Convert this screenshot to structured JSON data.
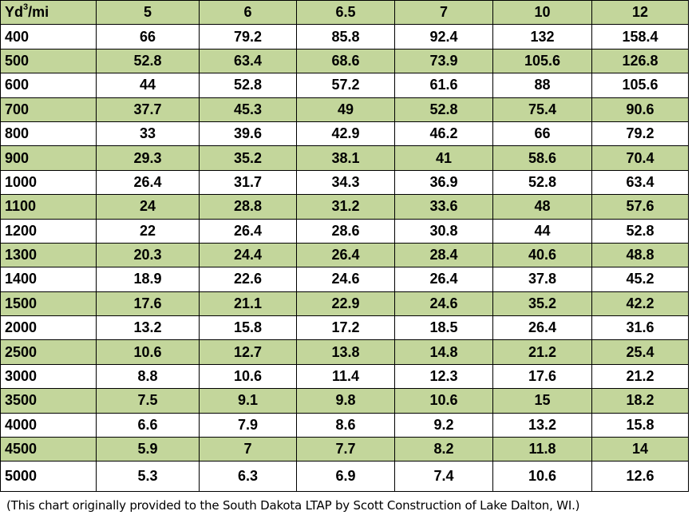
{
  "table": {
    "header": {
      "unit_label": "Yd",
      "unit_superscript": "3",
      "unit_suffix": "/mi",
      "columns": [
        "5",
        "6",
        "6.5",
        "7",
        "10",
        "12"
      ]
    },
    "rows": [
      {
        "label": "400",
        "values": [
          "66",
          "79.2",
          "85.8",
          "92.4",
          "132",
          "158.4"
        ]
      },
      {
        "label": "500",
        "values": [
          "52.8",
          "63.4",
          "68.6",
          "73.9",
          "105.6",
          "126.8"
        ]
      },
      {
        "label": "600",
        "values": [
          "44",
          "52.8",
          "57.2",
          "61.6",
          "88",
          "105.6"
        ]
      },
      {
        "label": "700",
        "values": [
          "37.7",
          "45.3",
          "49",
          "52.8",
          "75.4",
          "90.6"
        ]
      },
      {
        "label": "800",
        "values": [
          "33",
          "39.6",
          "42.9",
          "46.2",
          "66",
          "79.2"
        ]
      },
      {
        "label": "900",
        "values": [
          "29.3",
          "35.2",
          "38.1",
          "41",
          "58.6",
          "70.4"
        ]
      },
      {
        "label": "1000",
        "values": [
          "26.4",
          "31.7",
          "34.3",
          "36.9",
          "52.8",
          "63.4"
        ]
      },
      {
        "label": "1100",
        "values": [
          "24",
          "28.8",
          "31.2",
          "33.6",
          "48",
          "57.6"
        ]
      },
      {
        "label": "1200",
        "values": [
          "22",
          "26.4",
          "28.6",
          "30.8",
          "44",
          "52.8"
        ]
      },
      {
        "label": "1300",
        "values": [
          "20.3",
          "24.4",
          "26.4",
          "28.4",
          "40.6",
          "48.8"
        ]
      },
      {
        "label": "1400",
        "values": [
          "18.9",
          "22.6",
          "24.6",
          "26.4",
          "37.8",
          "45.2"
        ]
      },
      {
        "label": "1500",
        "values": [
          "17.6",
          "21.1",
          "22.9",
          "24.6",
          "35.2",
          "42.2"
        ]
      },
      {
        "label": "2000",
        "values": [
          "13.2",
          "15.8",
          "17.2",
          "18.5",
          "26.4",
          "31.6"
        ]
      },
      {
        "label": "2500",
        "values": [
          "10.6",
          "12.7",
          "13.8",
          "14.8",
          "21.2",
          "25.4"
        ]
      },
      {
        "label": "3000",
        "values": [
          "8.8",
          "10.6",
          "11.4",
          "12.3",
          "17.6",
          "21.2"
        ]
      },
      {
        "label": "3500",
        "values": [
          "7.5",
          "9.1",
          "9.8",
          "10.6",
          "15",
          "18.2"
        ]
      },
      {
        "label": "4000",
        "values": [
          "6.6",
          "7.9",
          "8.6",
          "9.2",
          "13.2",
          "15.8"
        ]
      },
      {
        "label": "4500",
        "values": [
          "5.9",
          "7",
          "7.7",
          "8.2",
          "11.8",
          "14"
        ]
      },
      {
        "label": "5000",
        "values": [
          "5.3",
          "6.3",
          "6.9",
          "7.4",
          "10.6",
          "12.6"
        ]
      }
    ]
  },
  "caption": "(This chart originally provided to the South Dakota LTAP by Scott Construction of Lake Dalton, WI.)",
  "colors": {
    "band_green": "#c3d69b",
    "band_white": "#ffffff",
    "border": "#000000"
  }
}
